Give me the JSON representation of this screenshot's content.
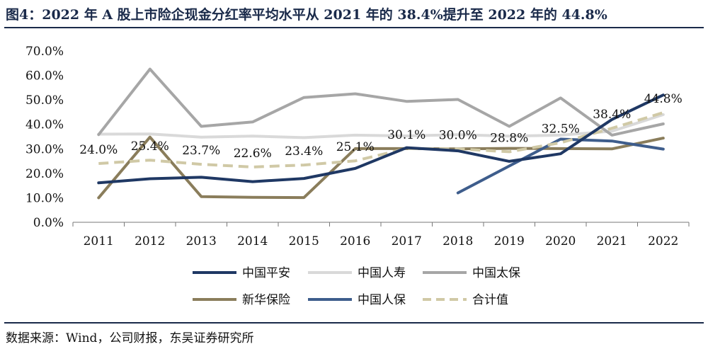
{
  "header": {
    "title": "图4：2022 年 A 股上市险企现金分红率平均水平从 2021 年的 38.4%提升至 2022 年的 44.8%"
  },
  "footer": {
    "source": "数据来源：Wind，公司财报，东吴证券研究所"
  },
  "chart_data": {
    "type": "line",
    "title": "图4：2022 年 A 股上市险企现金分红率平均水平从 2021 年的 38.4%提升至 2022 年的 44.8%",
    "categories": [
      "2011",
      "2012",
      "2013",
      "2014",
      "2015",
      "2016",
      "2017",
      "2018",
      "2019",
      "2020",
      "2021",
      "2022"
    ],
    "ylim": [
      0,
      70
    ],
    "ytick_values": [
      0,
      10,
      20,
      30,
      40,
      50,
      60,
      70
    ],
    "ytick_labels": [
      "0.0%",
      "10.0%",
      "20.0%",
      "30.0%",
      "40.0%",
      "50.0%",
      "60.0%",
      "70.0%"
    ],
    "xlabel": "",
    "ylabel": "",
    "legend_position": "bottom",
    "series": [
      {
        "name": "中国平安",
        "color": "#1f3864",
        "dashed": false,
        "values": [
          16.1,
          17.8,
          18.4,
          16.6,
          17.9,
          22.0,
          30.5,
          29.2,
          24.9,
          28.0,
          42.0,
          52.0
        ]
      },
      {
        "name": "中国人寿",
        "color": "#d9d9d9",
        "dashed": false,
        "values": [
          36.0,
          36.1,
          34.8,
          35.2,
          34.6,
          35.6,
          35.3,
          35.8,
          35.2,
          35.6,
          37.2,
          44.0
        ]
      },
      {
        "name": "中国太保",
        "color": "#a6a6a6",
        "dashed": false,
        "values": [
          35.8,
          62.6,
          39.2,
          41.0,
          51.0,
          52.5,
          49.4,
          50.2,
          39.2,
          50.8,
          35.6,
          40.2
        ]
      },
      {
        "name": "新华保险",
        "color": "#8a7d5b",
        "dashed": false,
        "values": [
          10.0,
          34.8,
          10.5,
          10.2,
          10.1,
          30.1,
          30.1,
          30.0,
          30.2,
          30.1,
          30.0,
          34.4
        ]
      },
      {
        "name": "中国人保",
        "color": "#3e5d8c",
        "dashed": false,
        "values": [
          null,
          null,
          null,
          null,
          null,
          null,
          null,
          12.0,
          23.0,
          34.0,
          33.2,
          29.9
        ]
      },
      {
        "name": "合计值",
        "color": "#d0c9a6",
        "dashed": true,
        "values": [
          24.0,
          25.4,
          23.7,
          22.6,
          23.4,
          25.1,
          30.1,
          30.0,
          28.8,
          32.5,
          38.4,
          44.8
        ],
        "labels": [
          "24.0%",
          "25.4%",
          "23.7%",
          "22.6%",
          "23.4%",
          "25.1%",
          "30.1%",
          "30.0%",
          "28.8%",
          "32.5%",
          "38.4%",
          "44.8%"
        ]
      }
    ]
  }
}
